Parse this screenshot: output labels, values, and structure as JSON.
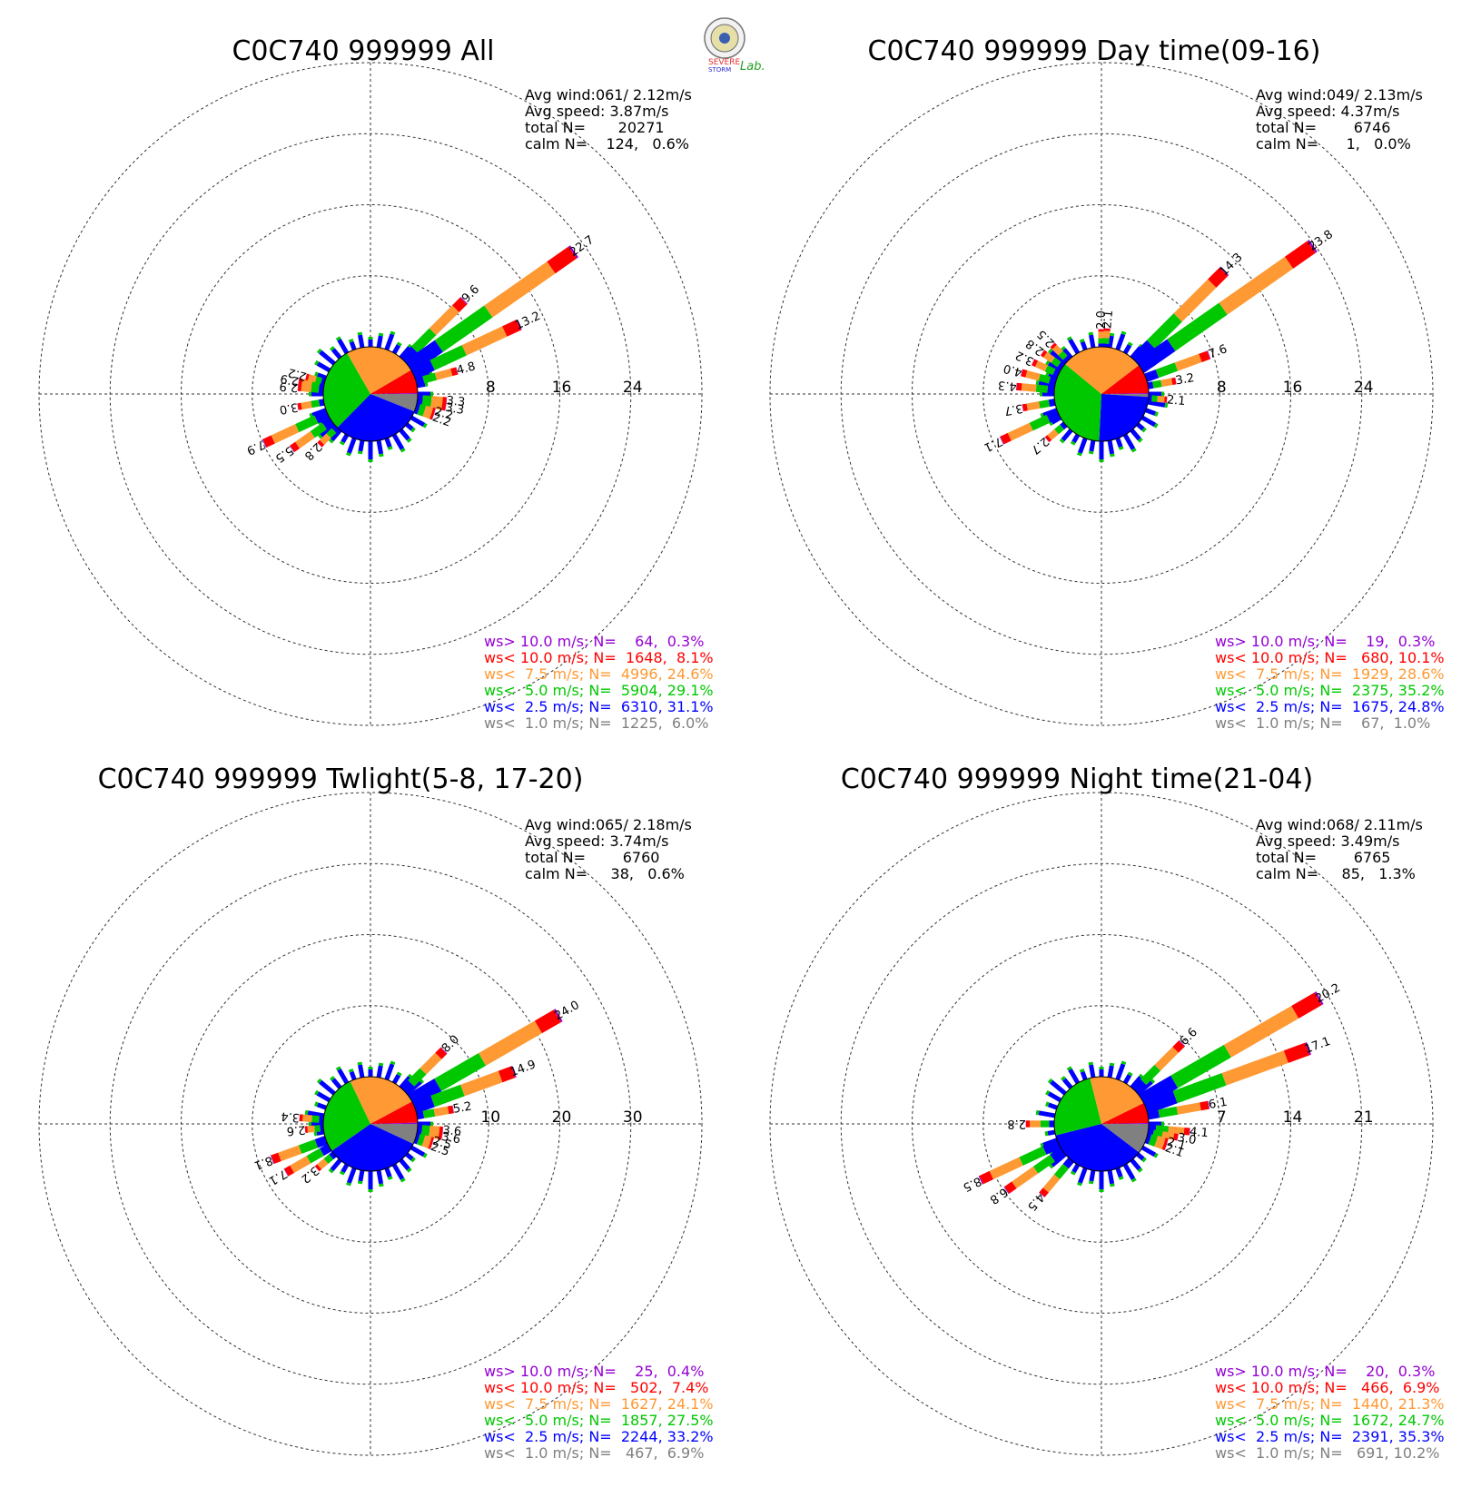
{
  "logo": {
    "text_top": "SEVERE",
    "text_bottom": "STORM",
    "text_lab": "Lab."
  },
  "colors": {
    "ws_gt10": "#9400d3",
    "ws_lt10": "#ff0000",
    "ws_lt7_5": "#ff9933",
    "ws_lt5": "#00c800",
    "ws_lt2_5": "#0000ff",
    "ws_lt1": "#808080"
  },
  "chart_data": [
    {
      "type": "wind_rose",
      "title": "C0C740 999999 All",
      "stats": [
        "Avg wind:061/ 2.12m/s",
        "Avg speed: 3.87m/s",
        "total N=       20271",
        "calm N=    124,   0.6%"
      ],
      "ring_labels": [
        "8",
        "16",
        "24"
      ],
      "rmax": 32,
      "legend": [
        "ws> 10.0 m/s; N=    64,  0.3%",
        "ws< 10.0 m/s; N=  1648,  8.1%",
        "ws<  7.5 m/s; N=  4996, 24.6%",
        "ws<  5.0 m/s; N=  5904, 29.1%",
        "ws<  2.5 m/s; N=  6310, 31.1%",
        "ws<  1.0 m/s; N=  1225,  6.0%"
      ],
      "pie": [
        6.0,
        31.1,
        29.1,
        24.6,
        8.1,
        0.3
      ],
      "bars": [
        {
          "dir": 45,
          "total": 9.6,
          "label": "9.6"
        },
        {
          "dir": 55,
          "total": 22.7,
          "label": "22.7"
        },
        {
          "dir": 65,
          "total": 13.2,
          "label": "13.2"
        },
        {
          "dir": 75,
          "total": 4.8,
          "label": "4.8"
        },
        {
          "dir": 95,
          "total": 3.3,
          "label": "3.3"
        },
        {
          "dir": 100,
          "total": 3.3,
          "label": "3.3"
        },
        {
          "dir": 105,
          "total": 2.2,
          "label": "2.2"
        },
        {
          "dir": 110,
          "total": 2.2,
          "label": "2.2"
        },
        {
          "dir": 225,
          "total": 2.8,
          "label": "2.8"
        },
        {
          "dir": 235,
          "total": 5.5,
          "label": "5.5"
        },
        {
          "dir": 245,
          "total": 7.9,
          "label": "7.9"
        },
        {
          "dir": 260,
          "total": 3.0,
          "label": "3.0"
        },
        {
          "dir": 275,
          "total": 2.9,
          "label": "2.9"
        },
        {
          "dir": 280,
          "total": 2.9,
          "label": "2.9"
        },
        {
          "dir": 285,
          "total": 2.2,
          "label": "2.2"
        }
      ]
    },
    {
      "type": "wind_rose",
      "title": "C0C740 999999 Day time(09-16)",
      "stats": [
        "Avg wind:049/ 2.13m/s",
        "Avg speed: 4.37m/s",
        "total N=        6746",
        "calm N=      1,   0.0%"
      ],
      "ring_labels": [
        "8",
        "16",
        "24"
      ],
      "rmax": 32,
      "legend": [
        "ws> 10.0 m/s; N=    19,  0.3%",
        "ws< 10.0 m/s; N=   680, 10.1%",
        "ws<  7.5 m/s; N=  1929, 28.6%",
        "ws<  5.0 m/s; N=  2375, 35.2%",
        "ws<  2.5 m/s; N=  1675, 24.8%",
        "ws<  1.0 m/s; N=    67,  1.0%"
      ],
      "pie": [
        1.0,
        24.8,
        35.2,
        28.6,
        10.1,
        0.3
      ],
      "bars": [
        {
          "dir": 0,
          "total": 2.0,
          "label": "2.0"
        },
        {
          "dir": 5,
          "total": 2.1,
          "label": "2.1"
        },
        {
          "dir": 45,
          "total": 14.3,
          "label": "14.3"
        },
        {
          "dir": 55,
          "total": 23.8,
          "label": "23.8"
        },
        {
          "dir": 70,
          "total": 7.6,
          "label": "7.6"
        },
        {
          "dir": 80,
          "total": 3.2,
          "label": "3.2"
        },
        {
          "dir": 95,
          "total": 2.1,
          "label": "2.1"
        },
        {
          "dir": 230,
          "total": 2.7,
          "label": "2.7"
        },
        {
          "dir": 245,
          "total": 7.1,
          "label": "7.1"
        },
        {
          "dir": 260,
          "total": 3.7,
          "label": "3.7"
        },
        {
          "dir": 275,
          "total": 4.3,
          "label": "4.3"
        },
        {
          "dir": 285,
          "total": 4.0,
          "label": "4.0"
        },
        {
          "dir": 295,
          "total": 3.2,
          "label": "3.2"
        },
        {
          "dir": 305,
          "total": 2.8,
          "label": "2.8"
        },
        {
          "dir": 315,
          "total": 2.5,
          "label": "2.5"
        }
      ]
    },
    {
      "type": "wind_rose",
      "title": "C0C740 999999 Twlight(5-8, 17-20)",
      "stats": [
        "Avg wind:065/ 2.18m/s",
        "Avg speed: 3.74m/s",
        "total N=        6760",
        "calm N=     38,   0.6%"
      ],
      "ring_labels": [
        "10",
        "20",
        "30"
      ],
      "rmax": 40,
      "legend": [
        "ws> 10.0 m/s; N=    25,  0.4%",
        "ws< 10.0 m/s; N=   502,  7.4%",
        "ws<  7.5 m/s; N=  1627, 24.1%",
        "ws<  5.0 m/s; N=  1857, 27.5%",
        "ws<  2.5 m/s; N=  2244, 33.2%",
        "ws<  1.0 m/s; N=   467,  6.9%"
      ],
      "pie": [
        6.9,
        33.2,
        27.5,
        24.1,
        7.4,
        0.4
      ],
      "bars": [
        {
          "dir": 45,
          "total": 8.0,
          "label": "8.0"
        },
        {
          "dir": 60,
          "total": 24.0,
          "label": "24.0"
        },
        {
          "dir": 70,
          "total": 14.9,
          "label": "14.9"
        },
        {
          "dir": 80,
          "total": 5.2,
          "label": "5.2"
        },
        {
          "dir": 95,
          "total": 3.6,
          "label": "3.6"
        },
        {
          "dir": 100,
          "total": 3.6,
          "label": "3.6"
        },
        {
          "dir": 105,
          "total": 2.5,
          "label": "2.5"
        },
        {
          "dir": 110,
          "total": 2.5,
          "label": "2.5"
        },
        {
          "dir": 230,
          "total": 3.2,
          "label": "3.2"
        },
        {
          "dir": 240,
          "total": 7.1,
          "label": "7.1"
        },
        {
          "dir": 250,
          "total": 8.1,
          "label": "8.1"
        },
        {
          "dir": 265,
          "total": 2.6,
          "label": "2.6"
        },
        {
          "dir": 275,
          "total": 3.4,
          "label": "3.4"
        }
      ]
    },
    {
      "type": "wind_rose",
      "title": "C0C740 999999 Night time(21-04)",
      "stats": [
        "Avg wind:068/ 2.11m/s",
        "Avg speed: 3.49m/s",
        "total N=        6765",
        "calm N=     85,   1.3%"
      ],
      "ring_labels": [
        "7",
        "14",
        "21"
      ],
      "rmax": 28,
      "legend": [
        "ws> 10.0 m/s; N=    20,  0.3%",
        "ws< 10.0 m/s; N=   466,  6.9%",
        "ws<  7.5 m/s; N=  1440, 21.3%",
        "ws<  5.0 m/s; N=  1672, 24.7%",
        "ws<  2.5 m/s; N=  2391, 35.3%",
        "ws<  1.0 m/s; N=   691, 10.2%"
      ],
      "pie": [
        10.2,
        35.3,
        24.7,
        21.3,
        6.9,
        0.3
      ],
      "bars": [
        {
          "dir": 45,
          "total": 6.6,
          "label": "6.6"
        },
        {
          "dir": 60,
          "total": 20.2,
          "label": "20.2"
        },
        {
          "dir": 70,
          "total": 17.1,
          "label": "17.1"
        },
        {
          "dir": 80,
          "total": 6.1,
          "label": "6.1"
        },
        {
          "dir": 95,
          "total": 4.1,
          "label": "4.1"
        },
        {
          "dir": 100,
          "total": 3.0,
          "label": "3.0"
        },
        {
          "dir": 105,
          "total": 2.1,
          "label": "2.1"
        },
        {
          "dir": 110,
          "total": 2.1,
          "label": "2.1"
        },
        {
          "dir": 220,
          "total": 4.5,
          "label": "4.5"
        },
        {
          "dir": 235,
          "total": 6.8,
          "label": "6.8"
        },
        {
          "dir": 245,
          "total": 8.5,
          "label": "8.5"
        },
        {
          "dir": 270,
          "total": 2.8,
          "label": "2.8"
        }
      ]
    }
  ]
}
